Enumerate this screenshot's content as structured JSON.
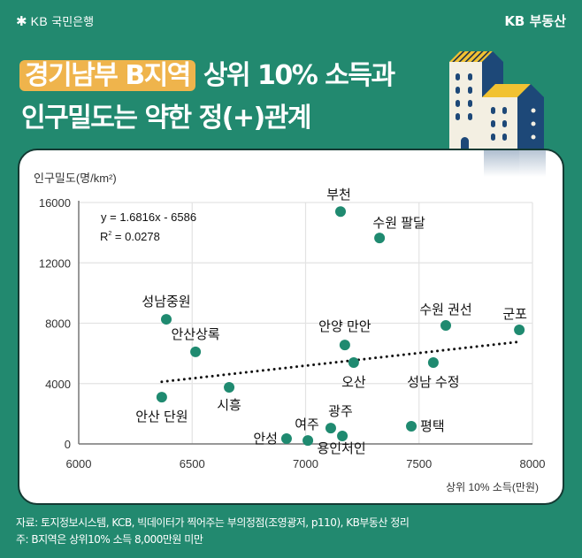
{
  "header": {
    "bank_logo_symbol": "✱",
    "bank_logo_kb": "KB",
    "bank_logo_text": "국민은행",
    "brand_right": "KB 부동산"
  },
  "title": {
    "highlight": "경기남부 B지역",
    "line1_rest": " 상위 10% 소득과",
    "line2": "인구밀도는 약한 정(+)관계"
  },
  "colors": {
    "background": "#22896f",
    "highlight": "#efb44c",
    "point": "#1f8a70",
    "card_border": "#143a33",
    "building_navy": "#1d4878",
    "building_cream": "#f3efe2",
    "roof_yellow": "#f1c232"
  },
  "chart_data": {
    "type": "scatter",
    "title": "",
    "xlabel": "상위 10% 소득(만원)",
    "ylabel": "인구밀도(명/km²)",
    "xlim": [
      6000,
      8000
    ],
    "ylim": [
      0,
      16000
    ],
    "x_ticks": [
      "6000",
      "6500",
      "7000",
      "7500",
      "8000"
    ],
    "y_ticks": [
      "0",
      "4000",
      "8000",
      "12000",
      "16000"
    ],
    "grid": true,
    "points": [
      {
        "label": "부천",
        "x": 7154,
        "y": 15400
      },
      {
        "label": "수원 팔달",
        "x": 7326,
        "y": 13650
      },
      {
        "label": "성남중원",
        "x": 6386,
        "y": 8260
      },
      {
        "label": "안산상록",
        "x": 6515,
        "y": 6100
      },
      {
        "label": "안산 단원",
        "x": 6366,
        "y": 3100
      },
      {
        "label": "시흥",
        "x": 6663,
        "y": 3750
      },
      {
        "label": "안성",
        "x": 6916,
        "y": 350
      },
      {
        "label": "여주",
        "x": 7010,
        "y": 230
      },
      {
        "label": "광주",
        "x": 7111,
        "y": 1050
      },
      {
        "label": "용인처인",
        "x": 7162,
        "y": 530
      },
      {
        "label": "평택",
        "x": 7466,
        "y": 1170
      },
      {
        "label": "안양 만안",
        "x": 7173,
        "y": 6560
      },
      {
        "label": "오산",
        "x": 7212,
        "y": 5390
      },
      {
        "label": "수원 권선",
        "x": 7618,
        "y": 7850
      },
      {
        "label": "군포",
        "x": 7942,
        "y": 7560
      },
      {
        "label": "성남 수정",
        "x": 7563,
        "y": 5390
      }
    ],
    "trendline": {
      "type": "linear",
      "slope": 1.6816,
      "intercept": -6586,
      "x_range": [
        6366,
        7942
      ],
      "equation_text": "y = 1.6816x - 6586",
      "r2_label": "R",
      "r2_sup": "2",
      "r2_value": " = 0.0278"
    }
  },
  "footnotes": {
    "source": "자료: 토지정보시스템, KCB, 빅데이터가 찍어주는 부의정점(조영광저, p110), KB부동산 정리",
    "note": "주: B지역은 상위10% 소득 8,000만원 미만"
  }
}
